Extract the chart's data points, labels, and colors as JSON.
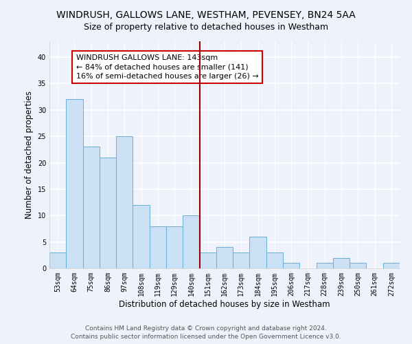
{
  "title": "WINDRUSH, GALLOWS LANE, WESTHAM, PEVENSEY, BN24 5AA",
  "subtitle": "Size of property relative to detached houses in Westham",
  "xlabel": "Distribution of detached houses by size in Westham",
  "ylabel": "Number of detached properties",
  "bar_labels": [
    "53sqm",
    "64sqm",
    "75sqm",
    "86sqm",
    "97sqm",
    "108sqm",
    "119sqm",
    "129sqm",
    "140sqm",
    "151sqm",
    "162sqm",
    "173sqm",
    "184sqm",
    "195sqm",
    "206sqm",
    "217sqm",
    "228sqm",
    "239sqm",
    "250sqm",
    "261sqm",
    "272sqm"
  ],
  "bar_values": [
    3,
    32,
    23,
    21,
    25,
    12,
    8,
    8,
    10,
    3,
    4,
    3,
    6,
    3,
    1,
    0,
    1,
    2,
    1,
    0,
    1
  ],
  "bar_color": "#cce0f5",
  "bar_edge_color": "#6aaed6",
  "vline_x": 8.5,
  "vline_color": "#990000",
  "annotation_text": "WINDRUSH GALLOWS LANE: 143sqm\n← 84% of detached houses are smaller (141)\n16% of semi-detached houses are larger (26) →",
  "ylim": [
    0,
    43
  ],
  "yticks": [
    0,
    5,
    10,
    15,
    20,
    25,
    30,
    35,
    40
  ],
  "background_color": "#eef2fa",
  "grid_color": "#ffffff",
  "footer_text": "Contains HM Land Registry data © Crown copyright and database right 2024.\nContains public sector information licensed under the Open Government Licence v3.0.",
  "title_fontsize": 10,
  "axis_label_fontsize": 8.5,
  "tick_fontsize": 7,
  "annotation_fontsize": 8,
  "footer_fontsize": 6.5
}
